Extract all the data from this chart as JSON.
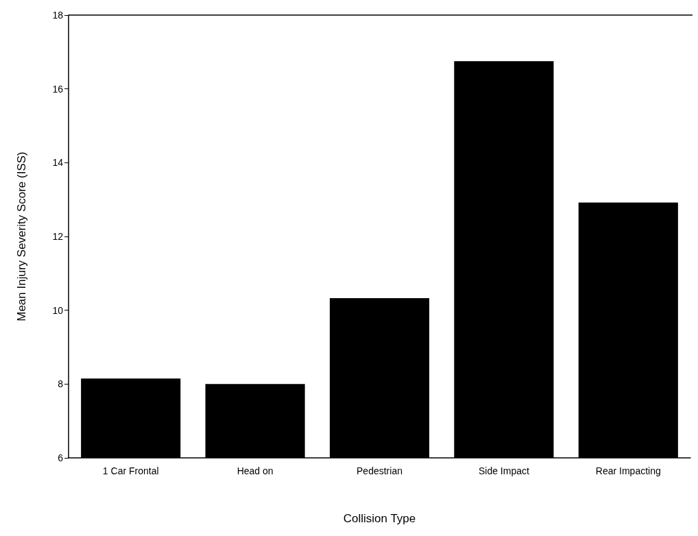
{
  "chart_data": {
    "type": "bar",
    "xlabel": "Collision Type",
    "ylabel": "Mean Injury Severity Score (ISS)",
    "categories": [
      "1 Car Frontal",
      "Head on",
      "Pedestrian",
      "Side Impact",
      "Rear Impacting"
    ],
    "values": [
      8.15,
      8.0,
      10.33,
      16.75,
      12.92
    ],
    "color": "#000000",
    "ylim": [
      6,
      18
    ],
    "yticks": [
      6,
      8,
      10,
      12,
      14,
      16,
      18
    ],
    "grid": false
  }
}
